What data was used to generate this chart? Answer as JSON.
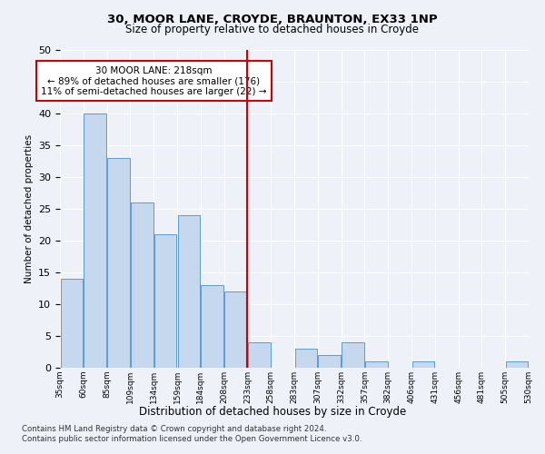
{
  "title1": "30, MOOR LANE, CROYDE, BRAUNTON, EX33 1NP",
  "title2": "Size of property relative to detached houses in Croyde",
  "xlabel": "Distribution of detached houses by size in Croyde",
  "ylabel": "Number of detached properties",
  "bins": [
    "35sqm",
    "60sqm",
    "85sqm",
    "109sqm",
    "134sqm",
    "159sqm",
    "184sqm",
    "208sqm",
    "233sqm",
    "258sqm",
    "283sqm",
    "307sqm",
    "332sqm",
    "357sqm",
    "382sqm",
    "406sqm",
    "431sqm",
    "456sqm",
    "481sqm",
    "505sqm",
    "530sqm"
  ],
  "values": [
    14,
    40,
    33,
    26,
    21,
    24,
    13,
    12,
    4,
    0,
    3,
    2,
    4,
    1,
    0,
    1,
    0,
    0,
    0,
    1
  ],
  "bar_color": "#c5d8ed",
  "bar_edge_color": "#5b9bd5",
  "red_line_x": 7.5,
  "annotation_text": "30 MOOR LANE: 218sqm\n← 89% of detached houses are smaller (176)\n11% of semi-detached houses are larger (22) →",
  "annotation_box_color": "#ffffff",
  "annotation_box_edge_color": "#cc0000",
  "ylim": [
    0,
    50
  ],
  "yticks": [
    0,
    5,
    10,
    15,
    20,
    25,
    30,
    35,
    40,
    45,
    50
  ],
  "footer": "Contains HM Land Registry data © Crown copyright and database right 2024.\nContains public sector information licensed under the Open Government Licence v3.0.",
  "bg_color": "#eef2f8",
  "plot_bg_color": "#eef2f8"
}
